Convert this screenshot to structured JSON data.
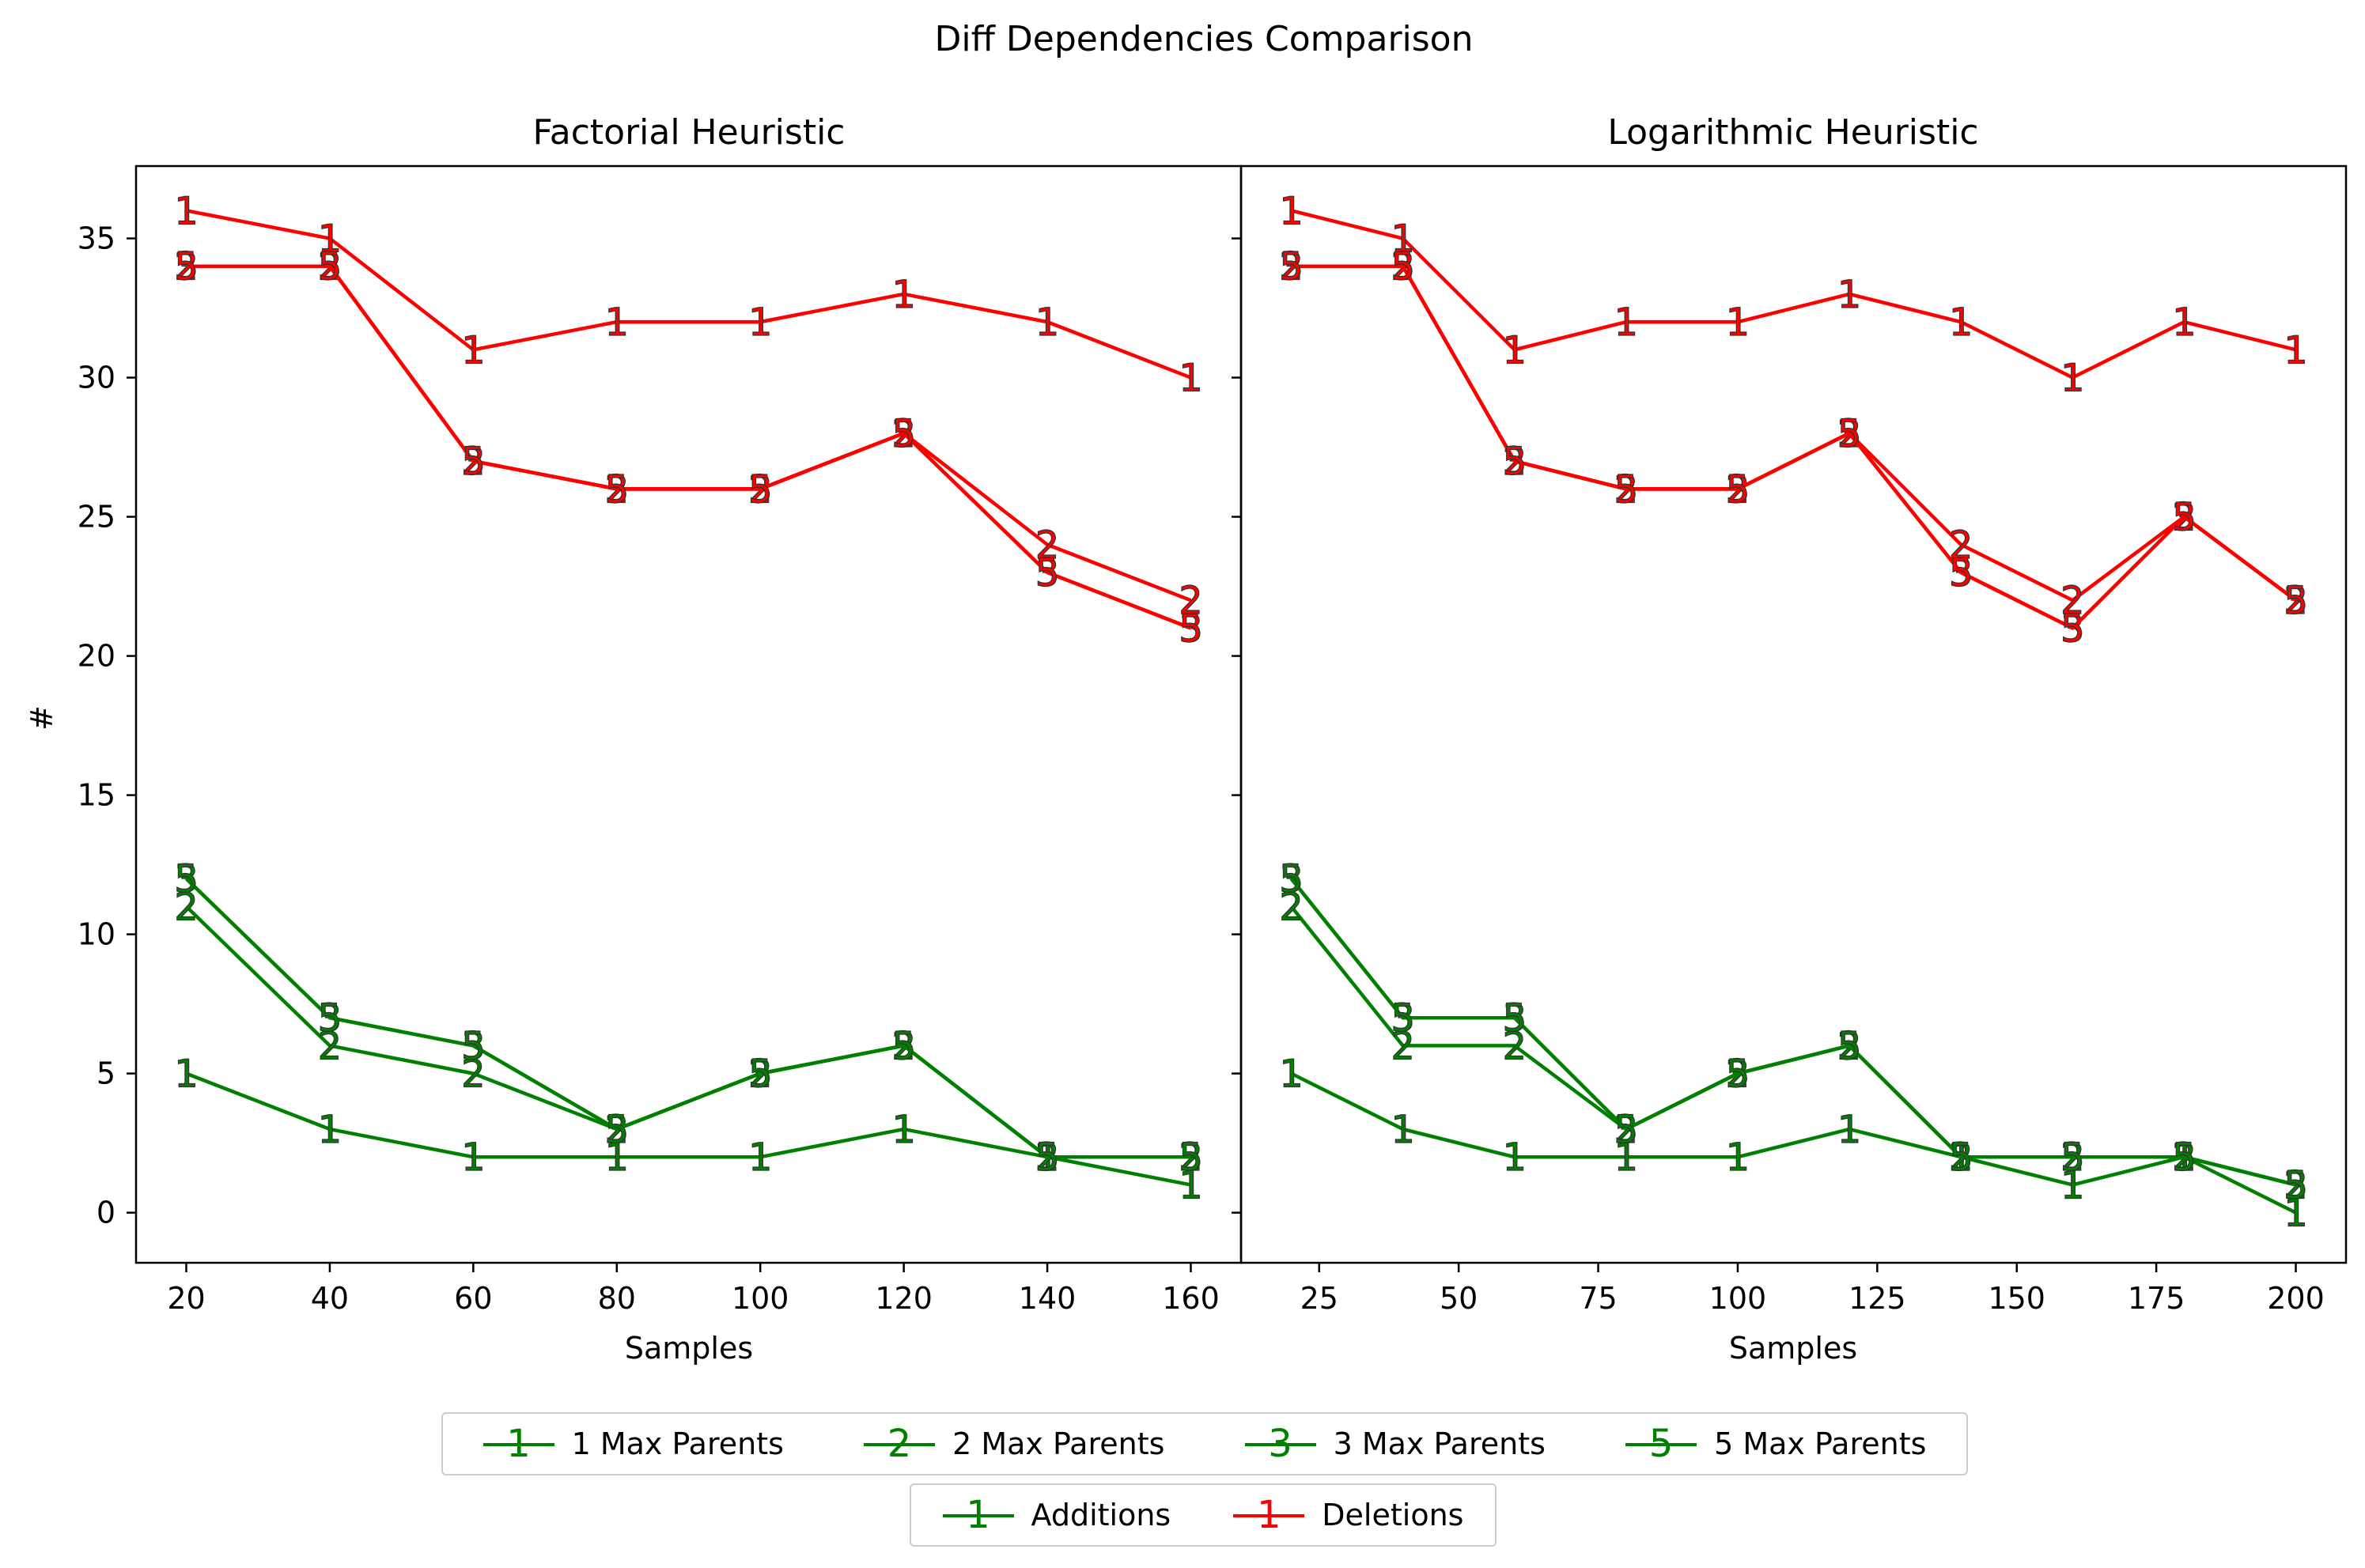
{
  "chart_data": {
    "type": "line",
    "title": "Diff Dependencies Comparison",
    "ylabel": "#",
    "ylim": [
      -1.8,
      37.6
    ],
    "yticks": [
      0,
      5,
      10,
      15,
      20,
      25,
      30,
      35
    ],
    "colors": {
      "additions": "#008000",
      "deletions": "#ff0000"
    },
    "legend_placement": "bottom-center",
    "grid": false,
    "panels": [
      {
        "title": "Factorial Heuristic",
        "xlabel": "Samples",
        "xlim": [
          13,
          167
        ],
        "xticks": [
          20,
          40,
          60,
          80,
          100,
          120,
          140,
          160
        ],
        "x": [
          20,
          40,
          60,
          80,
          100,
          120,
          140,
          160
        ],
        "series": [
          {
            "group": "Additions",
            "max_parents": 1,
            "marker": "1",
            "values": [
              5,
              3,
              2,
              2,
              2,
              3,
              2,
              1
            ]
          },
          {
            "group": "Additions",
            "max_parents": 2,
            "marker": "2",
            "values": [
              11,
              6,
              5,
              3,
              5,
              6,
              2,
              2
            ]
          },
          {
            "group": "Additions",
            "max_parents": 3,
            "marker": "3",
            "values": [
              12,
              7,
              6,
              3,
              5,
              6,
              2,
              2
            ]
          },
          {
            "group": "Additions",
            "max_parents": 5,
            "marker": "5",
            "values": [
              12,
              7,
              6,
              3,
              5,
              6,
              2,
              2
            ]
          },
          {
            "group": "Deletions",
            "max_parents": 1,
            "marker": "1",
            "values": [
              36,
              35,
              31,
              32,
              32,
              33,
              32,
              30
            ]
          },
          {
            "group": "Deletions",
            "max_parents": 2,
            "marker": "2",
            "values": [
              34,
              34,
              27,
              26,
              26,
              28,
              24,
              22
            ]
          },
          {
            "group": "Deletions",
            "max_parents": 3,
            "marker": "3",
            "values": [
              34,
              34,
              27,
              26,
              26,
              28,
              23,
              21
            ]
          },
          {
            "group": "Deletions",
            "max_parents": 5,
            "marker": "5",
            "values": [
              34,
              34,
              27,
              26,
              26,
              28,
              23,
              21
            ]
          }
        ]
      },
      {
        "title": "Logarithmic Heuristic",
        "xlabel": "Samples",
        "xlim": [
          11,
          209
        ],
        "xticks": [
          25,
          50,
          75,
          100,
          125,
          150,
          175,
          200
        ],
        "x": [
          20,
          40,
          60,
          80,
          100,
          120,
          140,
          160,
          180,
          200
        ],
        "series": [
          {
            "group": "Additions",
            "max_parents": 1,
            "marker": "1",
            "values": [
              5,
              3,
              2,
              2,
              2,
              3,
              2,
              1,
              2,
              0
            ]
          },
          {
            "group": "Additions",
            "max_parents": 2,
            "marker": "2",
            "values": [
              11,
              6,
              6,
              3,
              5,
              6,
              2,
              2,
              2,
              1
            ]
          },
          {
            "group": "Additions",
            "max_parents": 3,
            "marker": "3",
            "values": [
              12,
              7,
              7,
              3,
              5,
              6,
              2,
              2,
              2,
              1
            ]
          },
          {
            "group": "Additions",
            "max_parents": 5,
            "marker": "5",
            "values": [
              12,
              7,
              7,
              3,
              5,
              6,
              2,
              2,
              2,
              1
            ]
          },
          {
            "group": "Deletions",
            "max_parents": 1,
            "marker": "1",
            "values": [
              36,
              35,
              31,
              32,
              32,
              33,
              32,
              30,
              32,
              31
            ]
          },
          {
            "group": "Deletions",
            "max_parents": 2,
            "marker": "2",
            "values": [
              34,
              34,
              27,
              26,
              26,
              28,
              24,
              22,
              25,
              22
            ]
          },
          {
            "group": "Deletions",
            "max_parents": 3,
            "marker": "3",
            "values": [
              34,
              34,
              27,
              26,
              26,
              28,
              23,
              21,
              25,
              22
            ]
          },
          {
            "group": "Deletions",
            "max_parents": 5,
            "marker": "5",
            "values": [
              34,
              34,
              27,
              26,
              26,
              28,
              23,
              21,
              25,
              22
            ]
          }
        ]
      }
    ],
    "legends": [
      {
        "entries": [
          {
            "label": "1 Max Parents",
            "marker": "1",
            "color": "#008000"
          },
          {
            "label": "2 Max Parents",
            "marker": "2",
            "color": "#008000"
          },
          {
            "label": "3 Max Parents",
            "marker": "3",
            "color": "#008000"
          },
          {
            "label": "5 Max Parents",
            "marker": "5",
            "color": "#008000"
          }
        ]
      },
      {
        "entries": [
          {
            "label": "Additions",
            "marker": "1",
            "color": "#008000"
          },
          {
            "label": "Deletions",
            "marker": "1",
            "color": "#ff0000"
          }
        ]
      }
    ]
  }
}
